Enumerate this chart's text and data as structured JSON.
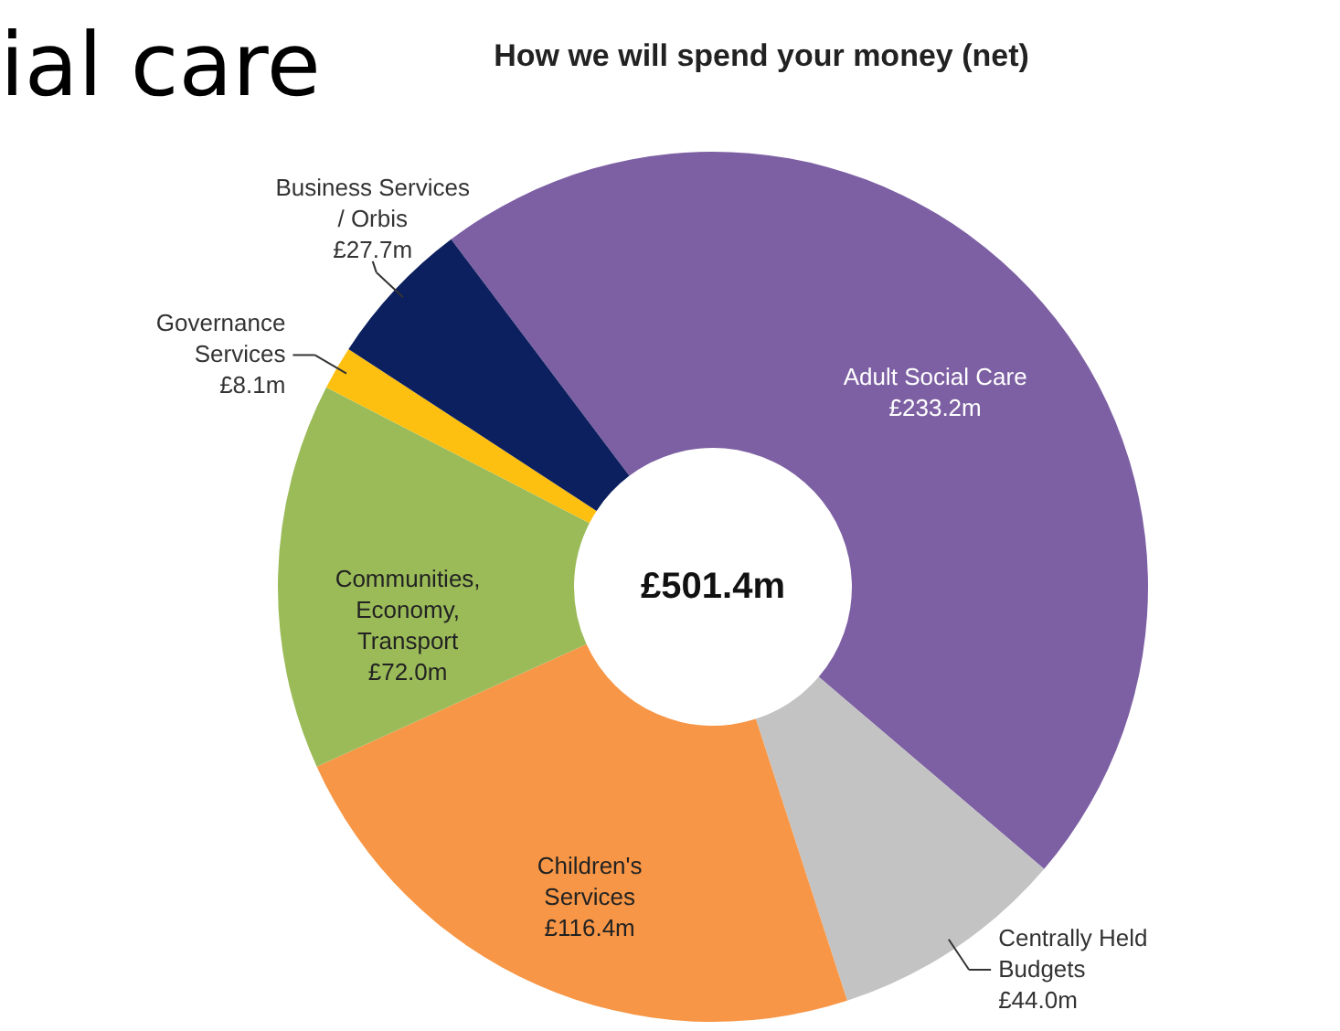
{
  "chart_data": {
    "type": "donut",
    "title": "How we will spend your money (net)",
    "categories": [
      "Adult Social Care",
      "Centrally Held Budgets",
      "Children's Services",
      "Communities, Economy, Transport",
      "Governance Services",
      "Business Services / Orbis"
    ],
    "values": [
      233.2,
      44.0,
      116.4,
      72.0,
      8.1,
      27.7
    ],
    "value_labels": [
      "£233.2m",
      "£44.0m",
      "£116.4m",
      "£72.0m",
      "£8.1m",
      "£27.7m"
    ],
    "colors": [
      "#7d60a3",
      "#c3c3c3",
      "#f79646",
      "#9bbb59",
      "#fdc010",
      "#0c1f5e"
    ],
    "annotations": [
      "£501.4m",
      "ial care"
    ]
  }
}
